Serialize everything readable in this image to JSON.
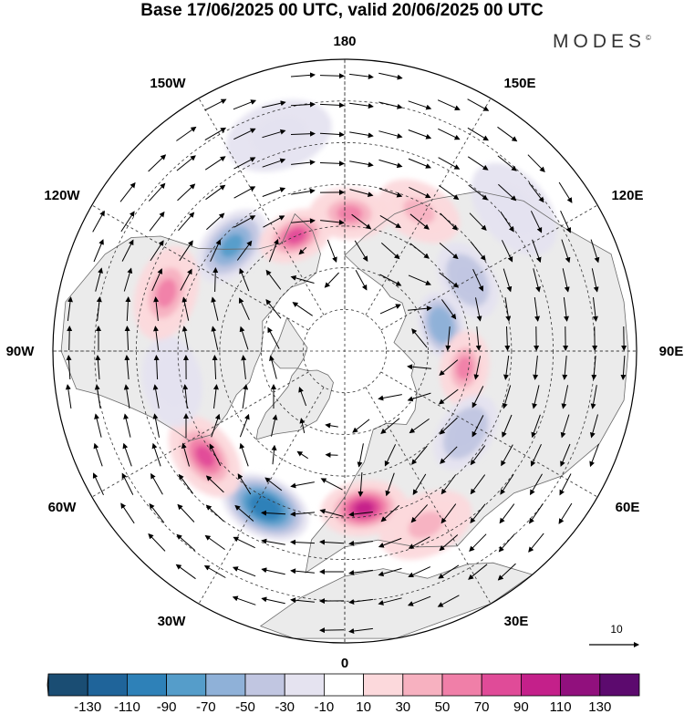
{
  "title": "Base 17/06/2025 00 UTC, valid 20/06/2025 00 UTC",
  "logo": "MODES",
  "logo_mark": "©",
  "longitude_labels": [
    "180",
    "150E",
    "120E",
    "90E",
    "60E",
    "30E",
    "0",
    "30W",
    "60W",
    "90W",
    "120W",
    "150W"
  ],
  "colorbar": {
    "ticks": [
      "-130",
      "-110",
      "-90",
      "-70",
      "-50",
      "-30",
      "-10",
      "10",
      "30",
      "50",
      "70",
      "90",
      "110",
      "130"
    ],
    "colors": [
      "#1a4d73",
      "#1f649a",
      "#2e81b8",
      "#559dca",
      "#8fb1d8",
      "#c1c6e1",
      "#e5e3f0",
      "#ffffff",
      "#fcd9dc",
      "#f7b1c0",
      "#f07fa8",
      "#e04b98",
      "#c4208a",
      "#91107d",
      "#5c0a6e"
    ]
  },
  "vector_reference": {
    "value": "10"
  },
  "anomalies": [
    {
      "lon": 178,
      "lat": 57,
      "value": 55
    },
    {
      "lon": 152,
      "lat": 52,
      "value": 40
    },
    {
      "lon": 120,
      "lat": 56,
      "value": -45
    },
    {
      "lon": 105,
      "lat": 66,
      "value": -60
    },
    {
      "lon": 82,
      "lat": 61,
      "value": 65
    },
    {
      "lon": 56,
      "lat": 55,
      "value": -35
    },
    {
      "lon": 25,
      "lat": 44,
      "value": 35
    },
    {
      "lon": 7,
      "lat": 52,
      "value": 95
    },
    {
      "lon": -27,
      "lat": 48,
      "value": -95
    },
    {
      "lon": -53,
      "lat": 48,
      "value": 80
    },
    {
      "lon": -80,
      "lat": 48,
      "value": -25
    },
    {
      "lon": -108,
      "lat": 45,
      "value": 65
    },
    {
      "lon": -133,
      "lat": 53,
      "value": -70
    },
    {
      "lon": -157,
      "lat": 60,
      "value": 75
    },
    {
      "lon": -163,
      "lat": 36,
      "value": -20
    },
    {
      "lon": 130,
      "lat": 37,
      "value": -25
    }
  ]
}
